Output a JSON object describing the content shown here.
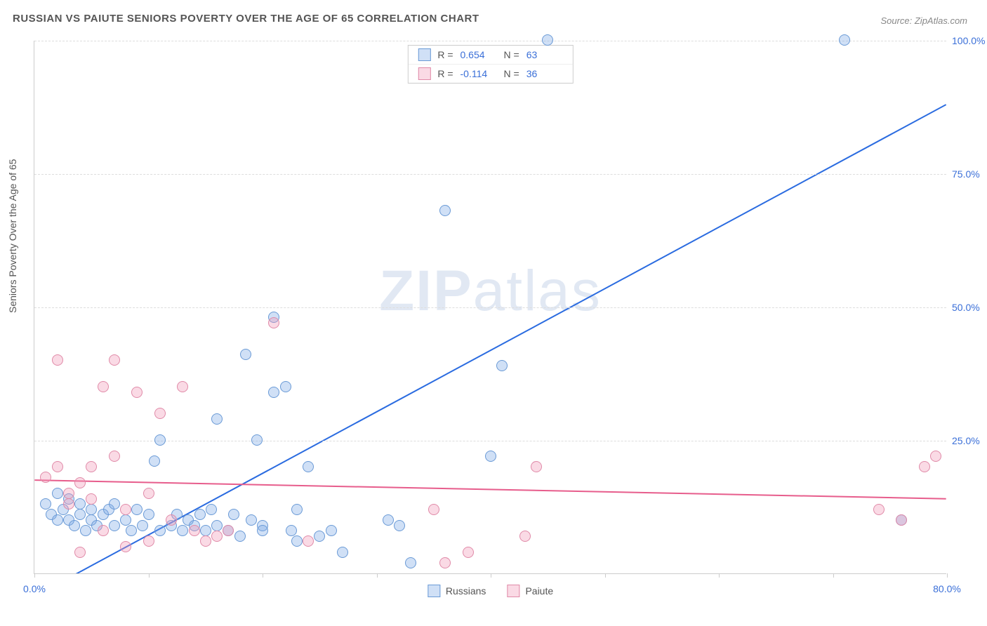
{
  "title": "RUSSIAN VS PAIUTE SENIORS POVERTY OVER THE AGE OF 65 CORRELATION CHART",
  "source": "Source: ZipAtlas.com",
  "y_axis_label": "Seniors Poverty Over the Age of 65",
  "watermark": {
    "bold": "ZIP",
    "light": "atlas"
  },
  "chart": {
    "type": "scatter",
    "xlim": [
      0,
      80
    ],
    "ylim": [
      0,
      100
    ],
    "x_ticks": [
      0,
      10,
      20,
      30,
      40,
      50,
      60,
      70,
      80
    ],
    "x_tick_labels": {
      "0": "0.0%",
      "80": "80.0%"
    },
    "y_ticks": [
      25,
      50,
      75,
      100
    ],
    "y_tick_labels": {
      "25": "25.0%",
      "50": "50.0%",
      "75": "75.0%",
      "100": "100.0%"
    },
    "grid_color": "#dddddd",
    "axis_color": "#cccccc",
    "tick_label_color": "#3a6fd8",
    "background_color": "#ffffff",
    "marker_radius": 8,
    "marker_stroke_width": 1.5,
    "trend_line_width": 2
  },
  "series": [
    {
      "name": "Russians",
      "fill_color": "rgba(120,165,230,0.35)",
      "stroke_color": "#6a9ad6",
      "line_color": "#2a6be0",
      "R": "0.654",
      "N": "63",
      "trend": {
        "x1": 2,
        "y1": -2,
        "x2": 80,
        "y2": 88
      },
      "points": [
        [
          1,
          13
        ],
        [
          1.5,
          11
        ],
        [
          2,
          15
        ],
        [
          2,
          10
        ],
        [
          2.5,
          12
        ],
        [
          3,
          10
        ],
        [
          3,
          14
        ],
        [
          3.5,
          9
        ],
        [
          4,
          11
        ],
        [
          4,
          13
        ],
        [
          4.5,
          8
        ],
        [
          5,
          10
        ],
        [
          5,
          12
        ],
        [
          5.5,
          9
        ],
        [
          6,
          11
        ],
        [
          6.5,
          12
        ],
        [
          7,
          9
        ],
        [
          7,
          13
        ],
        [
          8,
          10
        ],
        [
          8.5,
          8
        ],
        [
          9,
          12
        ],
        [
          9.5,
          9
        ],
        [
          10,
          11
        ],
        [
          10.5,
          21
        ],
        [
          11,
          8
        ],
        [
          11,
          25
        ],
        [
          12,
          9
        ],
        [
          12.5,
          11
        ],
        [
          13,
          8
        ],
        [
          13.5,
          10
        ],
        [
          14,
          9
        ],
        [
          14.5,
          11
        ],
        [
          15,
          8
        ],
        [
          15.5,
          12
        ],
        [
          16,
          9
        ],
        [
          16,
          29
        ],
        [
          17,
          8
        ],
        [
          17.5,
          11
        ],
        [
          18,
          7
        ],
        [
          18.5,
          41
        ],
        [
          19,
          10
        ],
        [
          19.5,
          25
        ],
        [
          20,
          9
        ],
        [
          20,
          8
        ],
        [
          21,
          48
        ],
        [
          21,
          34
        ],
        [
          22,
          35
        ],
        [
          22.5,
          8
        ],
        [
          23,
          12
        ],
        [
          23,
          6
        ],
        [
          24,
          20
        ],
        [
          25,
          7
        ],
        [
          26,
          8
        ],
        [
          27,
          4
        ],
        [
          31,
          10
        ],
        [
          32,
          9
        ],
        [
          33,
          2
        ],
        [
          36,
          68
        ],
        [
          40,
          22
        ],
        [
          41,
          39
        ],
        [
          45,
          100
        ],
        [
          71,
          100
        ],
        [
          76,
          10
        ]
      ]
    },
    {
      "name": "Paiute",
      "fill_color": "rgba(240,150,180,0.35)",
      "stroke_color": "#e08aa8",
      "line_color": "#e75d8c",
      "R": "-0.114",
      "N": "36",
      "trend": {
        "x1": 0,
        "y1": 17.5,
        "x2": 80,
        "y2": 14
      },
      "points": [
        [
          1,
          18
        ],
        [
          2,
          20
        ],
        [
          2,
          40
        ],
        [
          3,
          15
        ],
        [
          3,
          13
        ],
        [
          4,
          17
        ],
        [
          4,
          4
        ],
        [
          5,
          14
        ],
        [
          5,
          20
        ],
        [
          6,
          35
        ],
        [
          6,
          8
        ],
        [
          7,
          22
        ],
        [
          7,
          40
        ],
        [
          8,
          12
        ],
        [
          8,
          5
        ],
        [
          9,
          34
        ],
        [
          10,
          15
        ],
        [
          10,
          6
        ],
        [
          11,
          30
        ],
        [
          12,
          10
        ],
        [
          13,
          35
        ],
        [
          14,
          8
        ],
        [
          15,
          6
        ],
        [
          16,
          7
        ],
        [
          17,
          8
        ],
        [
          21,
          47
        ],
        [
          24,
          6
        ],
        [
          35,
          12
        ],
        [
          36,
          2
        ],
        [
          38,
          4
        ],
        [
          43,
          7
        ],
        [
          44,
          20
        ],
        [
          74,
          12
        ],
        [
          76,
          10
        ],
        [
          78,
          20
        ],
        [
          79,
          22
        ]
      ]
    }
  ],
  "stats_legend": {
    "r_label": "R =",
    "n_label": "N ="
  },
  "bottom_legend": {
    "items": [
      "Russians",
      "Paiute"
    ]
  }
}
